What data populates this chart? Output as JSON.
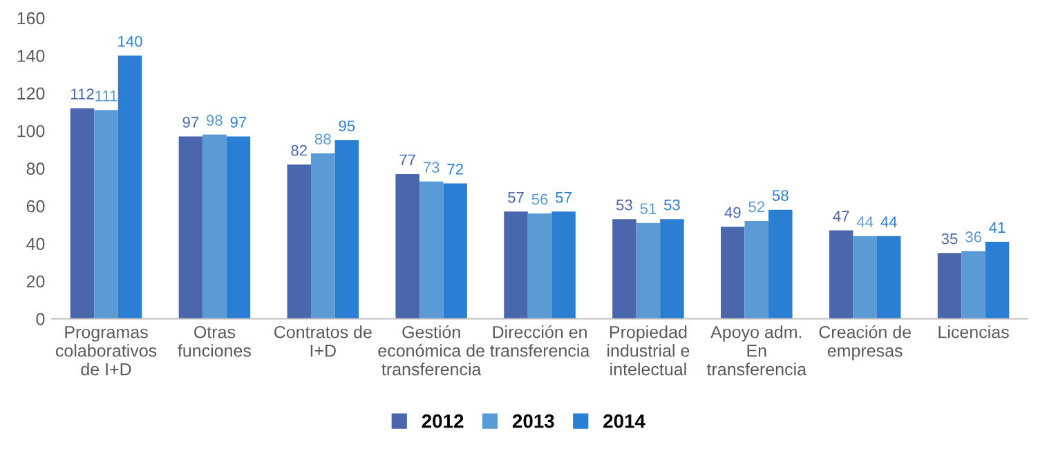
{
  "chart_data": {
    "type": "bar",
    "categories": [
      "Programas\ncolaborativos\nde I+D",
      "Otras\nfunciones",
      "Contratos de\nI+D",
      "Gestión\neconómica de\ntransferencia",
      "Dirección en\ntransferencia",
      "Propiedad\nindustrial e\nintelectual",
      "Apoyo adm.\nEn\ntransferencia",
      "Creación de\nempresas",
      "Licencias"
    ],
    "series": [
      {
        "name": "2012",
        "color": "#4a66ac",
        "values": [
          112,
          97,
          82,
          77,
          57,
          53,
          49,
          47,
          35
        ]
      },
      {
        "name": "2013",
        "color": "#5b9bd5",
        "values": [
          111,
          98,
          88,
          73,
          56,
          51,
          52,
          44,
          36
        ]
      },
      {
        "name": "2014",
        "color": "#2a7fd4",
        "values": [
          140,
          97,
          95,
          72,
          57,
          53,
          58,
          44,
          41
        ]
      }
    ],
    "ylim": [
      0,
      160
    ],
    "yticks": [
      0,
      20,
      40,
      60,
      80,
      100,
      120,
      140,
      160
    ],
    "data_labels": true,
    "grid": false,
    "legend": "bottom"
  }
}
